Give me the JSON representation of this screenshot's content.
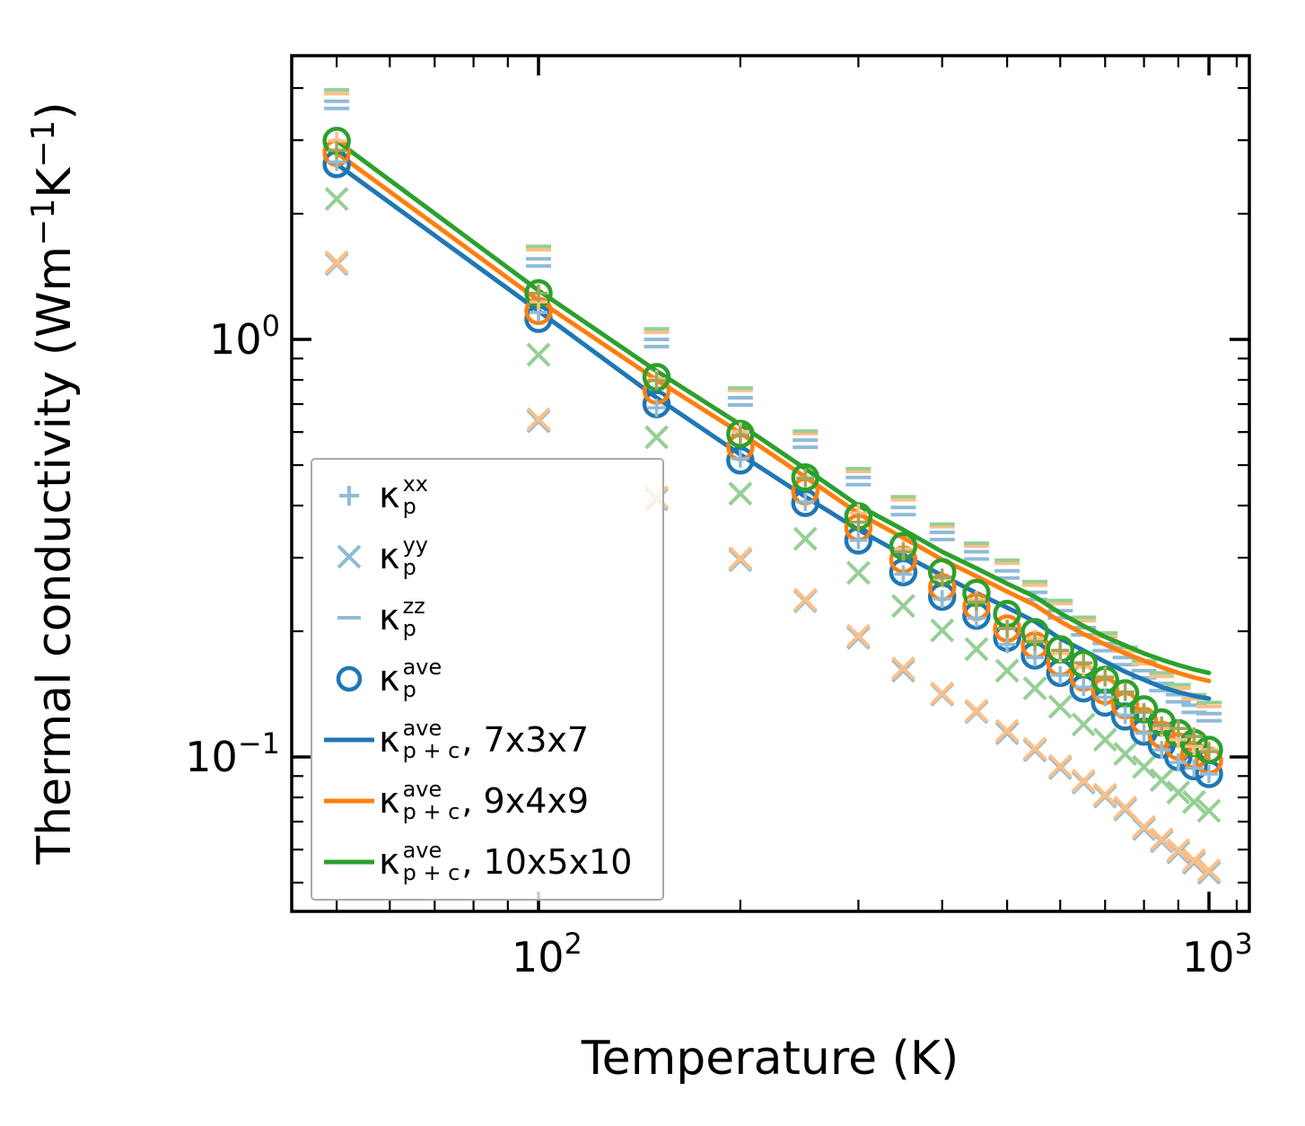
{
  "figure": {
    "title": "",
    "background": "#ffffff"
  },
  "chart_data": {
    "type": "scatter",
    "title": "",
    "xlabel": "Temperature (K)",
    "ylabel": "Thermal conductivity (Wm⁻¹K⁻¹)",
    "ylabel_parts": [
      {
        "text": "Thermal conductivity (Wm",
        "sup": false
      },
      {
        "text": "−1",
        "sup": true
      },
      {
        "text": "K",
        "sup": false
      },
      {
        "text": "−1",
        "sup": true
      },
      {
        "text": ")",
        "sup": false
      }
    ],
    "x_axis": {
      "scale": "log",
      "range": [
        42.8,
        1150
      ],
      "major_ticks": [
        100,
        1000
      ],
      "major_tick_labels": [
        {
          "base": "10",
          "exp": "2"
        },
        {
          "base": "10",
          "exp": "3"
        }
      ],
      "minor_ticks": [
        50,
        60,
        70,
        80,
        90,
        200,
        300,
        400,
        500,
        600,
        700,
        800,
        900,
        1100
      ]
    },
    "y_axis": {
      "scale": "log",
      "range": [
        0.0427,
        4.78
      ],
      "major_ticks": [
        1,
        0.1
      ],
      "major_tick_labels": [
        {
          "base": "10",
          "exp": "0"
        },
        {
          "base": "10",
          "exp": "−1"
        }
      ],
      "minor_ticks": [
        4,
        3,
        2,
        0.9,
        0.8,
        0.7,
        0.6,
        0.5,
        0.4,
        0.3,
        0.2,
        0.09,
        0.08,
        0.07,
        0.06,
        0.05
      ]
    },
    "temperatures": [
      50,
      100,
      150,
      200,
      250,
      300,
      350,
      400,
      450,
      500,
      550,
      600,
      650,
      700,
      750,
      800,
      850,
      900,
      950,
      1000
    ],
    "colors": {
      "blue": "#1f77b4",
      "orange": "#ff7f0e",
      "green": "#2ca02c",
      "light_blue": "#8fbbd8",
      "light_orange": "#ffbf86",
      "light_green": "#95cf95",
      "olive": "#a2a45a"
    },
    "grids": [
      {
        "name": "7x3x7",
        "color": "#1f77b4",
        "light_color": "#8fbbd8",
        "xx": [
          2.66,
          1.16,
          0.686,
          0.518,
          0.408,
          0.33,
          0.274,
          0.239,
          0.215,
          0.186,
          0.173,
          0.157,
          0.147,
          0.139,
          0.126,
          0.114,
          0.104,
          0.097,
          0.094,
          0.091
        ],
        "yy": [
          1.515,
          0.637,
          0.414,
          0.296,
          0.236,
          0.193,
          0.161,
          0.141,
          0.128,
          0.114,
          0.1037,
          0.0941,
          0.0868,
          0.0804,
          0.0748,
          0.0672,
          0.0628,
          0.0591,
          0.0558,
          0.0528
        ],
        "zz": [
          3.72,
          1.56,
          1.0,
          0.725,
          0.574,
          0.467,
          0.396,
          0.345,
          0.31,
          0.279,
          0.248,
          0.224,
          0.204,
          0.187,
          0.173,
          0.161,
          0.15,
          0.141,
          0.133,
          0.127
        ],
        "ave": [
          2.63,
          1.12,
          0.7,
          0.513,
          0.406,
          0.33,
          0.277,
          0.242,
          0.218,
          0.193,
          0.175,
          0.159,
          0.146,
          0.135,
          0.125,
          0.115,
          0.107,
          0.1,
          0.095,
          0.091
        ],
        "line": [
          2.63,
          1.17,
          0.725,
          0.53,
          0.42,
          0.35,
          0.305,
          0.272,
          0.247,
          0.228,
          0.211,
          0.192,
          0.18,
          0.169,
          0.16,
          0.153,
          0.147,
          0.143,
          0.14,
          0.138
        ]
      },
      {
        "name": "9x4x9",
        "color": "#ff7f0e",
        "light_color": "#ffbf86",
        "xx": [
          2.99,
          1.23,
          0.804,
          0.602,
          0.466,
          0.384,
          0.315,
          0.267,
          0.238,
          0.203,
          0.192,
          0.177,
          0.164,
          0.156,
          0.143,
          0.128,
          0.117,
          0.11,
          0.106,
          0.104
        ],
        "yy": [
          1.53,
          0.644,
          0.418,
          0.299,
          0.238,
          0.195,
          0.163,
          0.142,
          0.129,
          0.1155,
          0.1047,
          0.0951,
          0.0877,
          0.0812,
          0.0756,
          0.068,
          0.0635,
          0.0598,
          0.0565,
          0.0535
        ],
        "zz": [
          3.88,
          1.64,
          1.04,
          0.755,
          0.595,
          0.483,
          0.413,
          0.356,
          0.32,
          0.291,
          0.258,
          0.233,
          0.212,
          0.194,
          0.179,
          0.167,
          0.156,
          0.146,
          0.138,
          0.132
        ],
        "ave": [
          2.8,
          1.17,
          0.754,
          0.552,
          0.433,
          0.354,
          0.297,
          0.255,
          0.229,
          0.203,
          0.185,
          0.168,
          0.155,
          0.144,
          0.133,
          0.122,
          0.113,
          0.106,
          0.101,
          0.098
        ],
        "line": [
          2.8,
          1.24,
          0.8,
          0.597,
          0.468,
          0.383,
          0.335,
          0.297,
          0.271,
          0.249,
          0.231,
          0.211,
          0.197,
          0.186,
          0.177,
          0.17,
          0.164,
          0.159,
          0.155,
          0.152
        ]
      },
      {
        "name": "10x5x10",
        "color": "#2ca02c",
        "light_color": "#95cf95",
        "xx_color": "#a2a45a",
        "xx": [
          2.84,
          1.29,
          0.797,
          0.59,
          0.465,
          0.365,
          0.31,
          0.269,
          0.235,
          0.203,
          0.189,
          0.18,
          0.168,
          0.155,
          0.143,
          0.128,
          0.119,
          0.117,
          0.112,
          0.103
        ],
        "yy": [
          2.17,
          0.919,
          0.583,
          0.427,
          0.333,
          0.276,
          0.23,
          0.201,
          0.1812,
          0.1609,
          0.146,
          0.1319,
          0.1196,
          0.11,
          0.1017,
          0.0946,
          0.088,
          0.0822,
          0.078,
          0.0743
        ],
        "zz": [
          3.96,
          1.67,
          1.06,
          0.765,
          0.603,
          0.49,
          0.42,
          0.361,
          0.325,
          0.296,
          0.263,
          0.237,
          0.216,
          0.198,
          0.183,
          0.17,
          0.159,
          0.149,
          0.141,
          0.135
        ],
        "ave": [
          2.99,
          1.29,
          0.812,
          0.594,
          0.467,
          0.377,
          0.32,
          0.277,
          0.247,
          0.22,
          0.199,
          0.181,
          0.167,
          0.153,
          0.142,
          0.13,
          0.121,
          0.114,
          0.108,
          0.104
        ],
        "line": [
          2.99,
          1.31,
          0.84,
          0.625,
          0.49,
          0.4,
          0.35,
          0.31,
          0.283,
          0.26,
          0.242,
          0.221,
          0.206,
          0.194,
          0.185,
          0.177,
          0.171,
          0.166,
          0.162,
          0.159
        ]
      }
    ],
    "legend": {
      "position": "lower left",
      "entries": [
        {
          "marker": "plus",
          "color": "#8fbbd8",
          "sup": "xx",
          "sub": "p",
          "suffix": ""
        },
        {
          "marker": "cross",
          "color": "#8fbbd8",
          "sup": "yy",
          "sub": "p",
          "suffix": ""
        },
        {
          "marker": "dash",
          "color": "#8fbbd8",
          "sup": "zz",
          "sub": "p",
          "suffix": ""
        },
        {
          "marker": "circle",
          "color": "#1f77b4",
          "sup": "ave",
          "sub": "p",
          "suffix": ""
        },
        {
          "marker": "line",
          "color": "#1f77b4",
          "sup": "ave",
          "sub": "p + c",
          "suffix": ", 7x3x7"
        },
        {
          "marker": "line",
          "color": "#ff7f0e",
          "sup": "ave",
          "sub": "p + c",
          "suffix": ", 9x4x9"
        },
        {
          "marker": "line",
          "color": "#2ca02c",
          "sup": "ave",
          "sub": "p + c",
          "suffix": ", 10x5x10"
        }
      ],
      "kappa": "κ"
    }
  }
}
